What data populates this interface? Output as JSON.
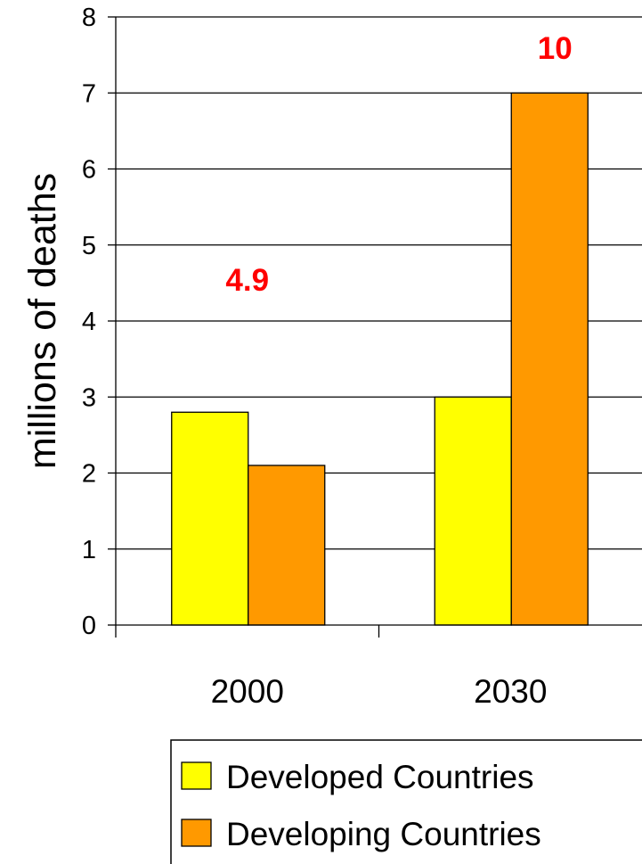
{
  "chart_data": {
    "type": "bar",
    "title": "",
    "xlabel": "",
    "ylabel": "millions of deaths",
    "ylim": [
      0,
      8
    ],
    "yticks": [
      0,
      1,
      2,
      3,
      4,
      5,
      6,
      7,
      8
    ],
    "grid": true,
    "categories": [
      "2000",
      "2030"
    ],
    "series": [
      {
        "name": "Developed Countries",
        "values": [
          2.8,
          3.0
        ],
        "color": "#FFFF00"
      },
      {
        "name": "Developing Countries",
        "values": [
          2.1,
          7.0
        ],
        "color": "#FF9900"
      }
    ],
    "annotations": [
      {
        "category": "2000",
        "text": "4.9",
        "color": "#FF0000"
      },
      {
        "category": "2030",
        "text": "10",
        "color": "#FF0000"
      }
    ],
    "legend_position": "bottom-right"
  }
}
